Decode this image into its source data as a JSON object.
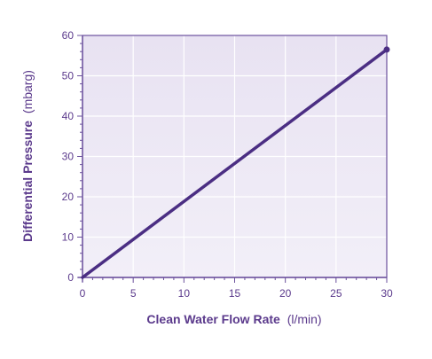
{
  "chart_data": {
    "type": "line",
    "title": "",
    "xlabel": "Clean Water Flow Rate",
    "xlabel_unit": "(l/min)",
    "ylabel": "Differential Pressure",
    "ylabel_unit": "(mbarg)",
    "xlim": [
      0,
      30
    ],
    "ylim": [
      0,
      60
    ],
    "x_ticks": [
      0,
      5,
      10,
      15,
      20,
      25,
      30
    ],
    "y_ticks": [
      0,
      10,
      20,
      30,
      40,
      50,
      60
    ],
    "grid": true,
    "series": [
      {
        "x": [
          0,
          30
        ],
        "y": [
          0,
          56.5
        ]
      }
    ]
  },
  "colors": {
    "line": "#4b2e83",
    "axis_text": "#5b3a8c",
    "plot_bg": "#ece8f4",
    "grid": "#ffffff"
  }
}
